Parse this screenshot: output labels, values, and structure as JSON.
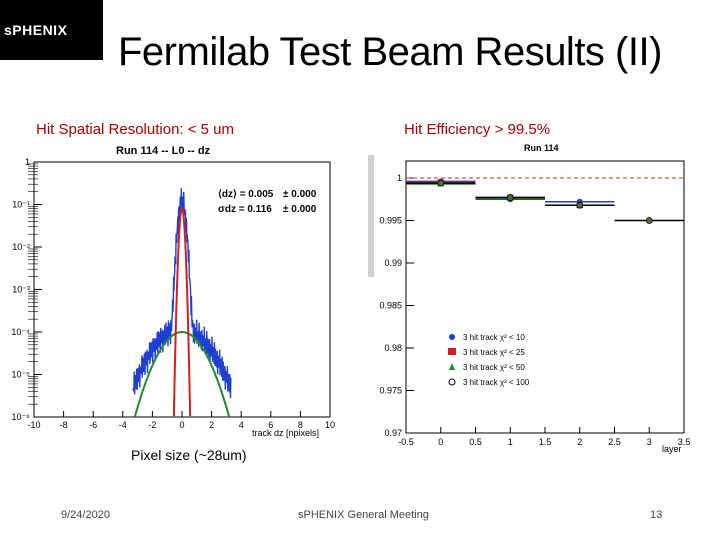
{
  "logo": {
    "text": "sPHENIX"
  },
  "title": "Fermilab Test Beam Results (II)",
  "captions": {
    "resolution": "Hit Spatial Resolution: < 5 um",
    "efficiency": "Hit Efficiency > 99.5%",
    "pixel_size": "Pixel size (~28um)"
  },
  "footer": {
    "date": "9/24/2020",
    "meeting": "sPHENIX General Meeting",
    "page": "13"
  },
  "chart_data": [
    {
      "type": "line",
      "title": "Run 114 -- L0 -- dz",
      "xlabel": "track dz [npixels]",
      "ylabel": "",
      "log_y": true,
      "xlim": [
        -10,
        10
      ],
      "ylim": [
        1e-06,
        1
      ],
      "x_ticks": [
        "-10",
        "-8",
        "-6",
        "-4",
        "-2",
        "0",
        "2",
        "4",
        "6",
        "8",
        "10"
      ],
      "y_ticks": [
        "1",
        "10⁻¹",
        "10⁻²",
        "10⁻³",
        "10⁻⁴",
        "10⁻⁵",
        "10⁻⁶"
      ],
      "stats": {
        "line1_label": "⟨dz⟩ = 0.005",
        "line1_err": "± 0.000",
        "line2_label": "σdz = 0.116",
        "line2_err": "± 0.000"
      },
      "series": [
        {
          "color": "#1f3fd0",
          "peak": 0.12,
          "core_sigma": 0.18,
          "tail_amp": 0.00012,
          "tail_sigma": 1.3
        },
        {
          "color": "#d02020",
          "peak": 0.08,
          "core_sigma": 0.116
        },
        {
          "color": "#1f8a2a",
          "peak": 0.0001,
          "sigma": 1.05
        }
      ]
    },
    {
      "type": "scatter",
      "title": "Run 114",
      "xlabel": "layer",
      "ylabel": "",
      "xlim": [
        -0.5,
        3.5
      ],
      "ylim": [
        0.97,
        1.002
      ],
      "x_ticks": [
        "-0.5",
        "0",
        "0.5",
        "1",
        "1.5",
        "2",
        "2.5",
        "3",
        "3.5"
      ],
      "y_ticks": [
        "1",
        "0.995",
        "0.99",
        "0.985",
        "0.98",
        "0.975",
        "0.97"
      ],
      "reference_line": 1.0,
      "series": [
        {
          "name": "3 hit track χ² < 10",
          "color": "#1f3fd0",
          "marker": "circle",
          "x": [
            0,
            1,
            2
          ],
          "y": [
            0.9996,
            0.9975,
            0.9972
          ]
        },
        {
          "name": "3 hit track χ² < 25",
          "color": "#d02020",
          "marker": "square",
          "x": [
            0,
            1,
            2
          ],
          "y": [
            0.9995,
            0.9977,
            0.9968
          ]
        },
        {
          "name": "3 hit track χ² < 50",
          "color": "#1f8a2a",
          "marker": "triangle",
          "x": [
            0,
            1,
            2
          ],
          "y": [
            0.9993,
            0.9976,
            0.9968
          ]
        },
        {
          "name": "3 hit track χ² < 100",
          "color": "#556b2f",
          "marker": "open-circle",
          "x": [
            0,
            1,
            2,
            3
          ],
          "y": [
            0.9994,
            0.9977,
            0.9968,
            0.995
          ]
        }
      ]
    }
  ]
}
